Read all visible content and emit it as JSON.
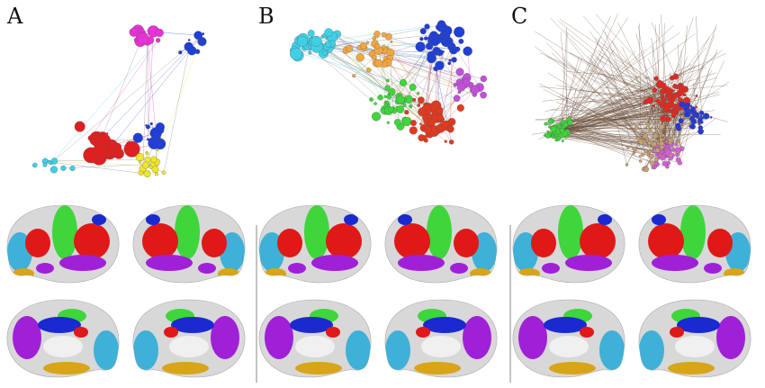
{
  "panels": [
    {
      "label": "A",
      "modules": [
        {
          "name": "magenta",
          "color": "#e632d6"
        },
        {
          "name": "blue",
          "color": "#1f3fd6"
        },
        {
          "name": "red",
          "color": "#e02020"
        },
        {
          "name": "cyan",
          "color": "#3fd0e6"
        },
        {
          "name": "yellow",
          "color": "#f0e62a"
        }
      ]
    },
    {
      "label": "B",
      "modules": [
        {
          "name": "cyan",
          "color": "#3fd0e6"
        },
        {
          "name": "orange",
          "color": "#f2a640"
        },
        {
          "name": "blue",
          "color": "#1f3fd6"
        },
        {
          "name": "magenta",
          "color": "#c24fd9"
        },
        {
          "name": "green",
          "color": "#3ed63a"
        },
        {
          "name": "red",
          "color": "#e03a20"
        }
      ]
    },
    {
      "label": "C",
      "modules": [
        {
          "name": "green",
          "color": "#3ed63a"
        },
        {
          "name": "red",
          "color": "#e02a20"
        },
        {
          "name": "blue",
          "color": "#2438d6"
        },
        {
          "name": "magenta",
          "color": "#d65fd9"
        },
        {
          "name": "tan",
          "color": "#c8a070"
        }
      ]
    }
  ],
  "brain_colors": {
    "visual": "#3fb0d8",
    "somatomotor": "#3ed63a",
    "frontoparietal": "#e01818",
    "default": "#a020d8",
    "dorsal_attention": "#1a2ad0",
    "limbic": "#d8a418",
    "medial_wall": "#f0f0f0",
    "cortex_base": "#d8d8d8"
  }
}
